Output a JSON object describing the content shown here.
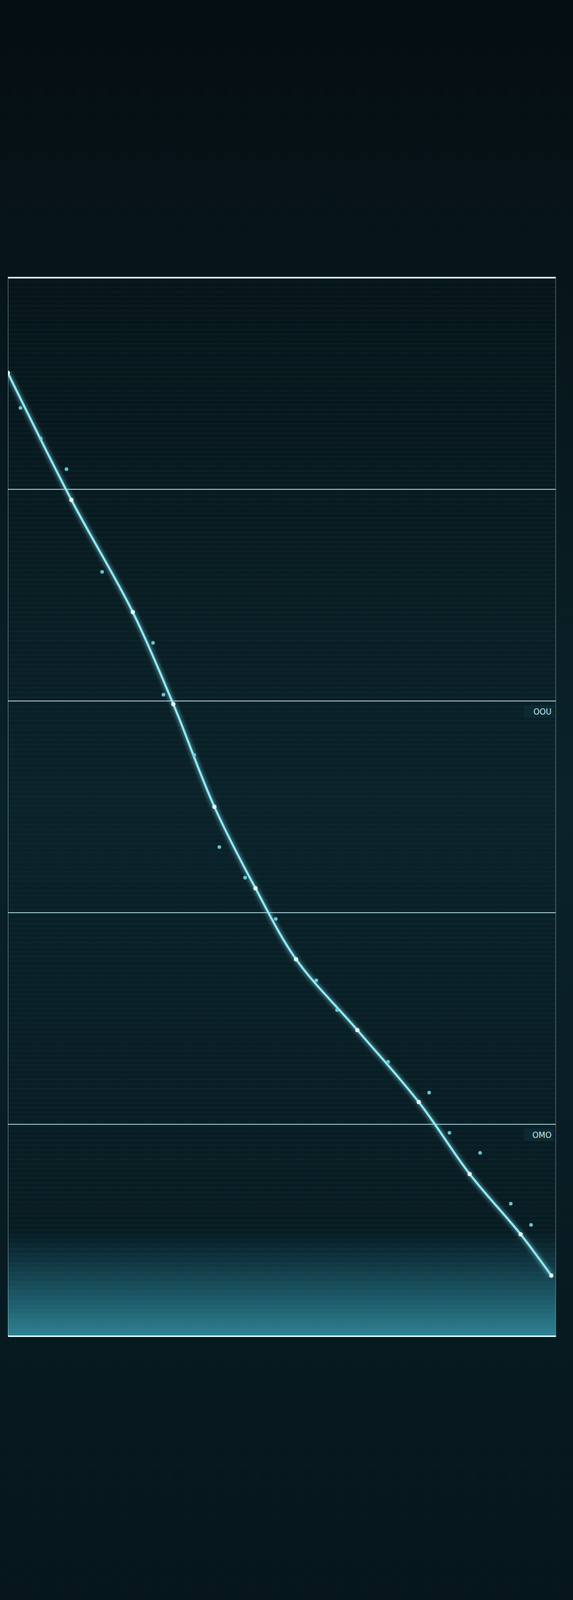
{
  "chart_data": {
    "type": "line",
    "xlim": [
      0,
      100
    ],
    "ylim": [
      0,
      100
    ],
    "yticks": [
      0,
      20,
      40,
      60,
      80,
      100
    ],
    "grid": true,
    "tick_labels": false,
    "series": [
      {
        "type": "line",
        "color": "#8ee9f5",
        "x": [
          0,
          11.6,
          22.8,
          30.2,
          37.7,
          45.2,
          52.6,
          63.8,
          75.0,
          84.3,
          93.6,
          99.2
        ],
        "values": [
          91.0,
          79.0,
          68.4,
          59.7,
          50.0,
          42.3,
          35.6,
          28.9,
          22.1,
          15.3,
          9.6,
          5.7
        ]
      },
      {
        "type": "scatter",
        "color": "#6fd4e6",
        "marker": "circle",
        "x": [
          2.3,
          6.0,
          10.7,
          17.2,
          26.5,
          28.4,
          34.0,
          38.6,
          43.3,
          48.9,
          56.3,
          60.1,
          69.4,
          76.9,
          80.6,
          86.2,
          91.8,
          95.5
        ],
        "values": [
          87.7,
          84.8,
          81.9,
          72.2,
          65.5,
          60.6,
          54.9,
          46.2,
          43.3,
          39.4,
          33.6,
          30.8,
          25.9,
          23.0,
          19.2,
          17.3,
          12.5,
          10.5
        ]
      }
    ],
    "annotations": [
      {
        "text": "OOU",
        "y": 60
      },
      {
        "text": "OMO",
        "y": 20
      }
    ]
  }
}
